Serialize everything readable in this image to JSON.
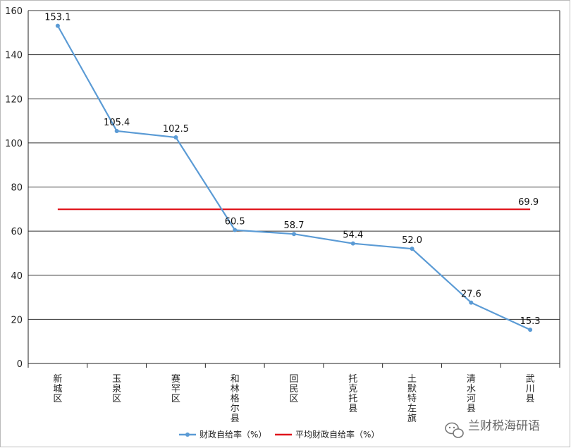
{
  "chart_data": {
    "type": "line",
    "categories": [
      "新城区",
      "玉泉区",
      "赛罕区",
      "和林格尔县",
      "回民区",
      "托克托县",
      "土默特左旗",
      "清水河县",
      "武川县"
    ],
    "series": [
      {
        "name": "财政自给率（%）",
        "values": [
          153.1,
          105.4,
          102.5,
          60.5,
          58.7,
          54.4,
          52.0,
          27.6,
          15.3
        ],
        "color": "#5b9bd5"
      },
      {
        "name": "平均财政自给率（%）",
        "values": [
          69.9,
          69.9,
          69.9,
          69.9,
          69.9,
          69.9,
          69.9,
          69.9,
          69.9
        ],
        "color": "#e0141c"
      }
    ],
    "data_labels": [
      "153.1",
      "105.4",
      "102.5",
      "60.5",
      "58.7",
      "54.4",
      "52.0",
      "27.6",
      "15.3"
    ],
    "avg_label": "69.9",
    "ylim": [
      0,
      160
    ],
    "yticks": [
      0,
      20,
      40,
      60,
      80,
      100,
      120,
      140,
      160
    ],
    "grid": true,
    "legend_position": "bottom"
  },
  "watermark": {
    "text": "兰财税海研语",
    "icon": "wechat-icon"
  }
}
